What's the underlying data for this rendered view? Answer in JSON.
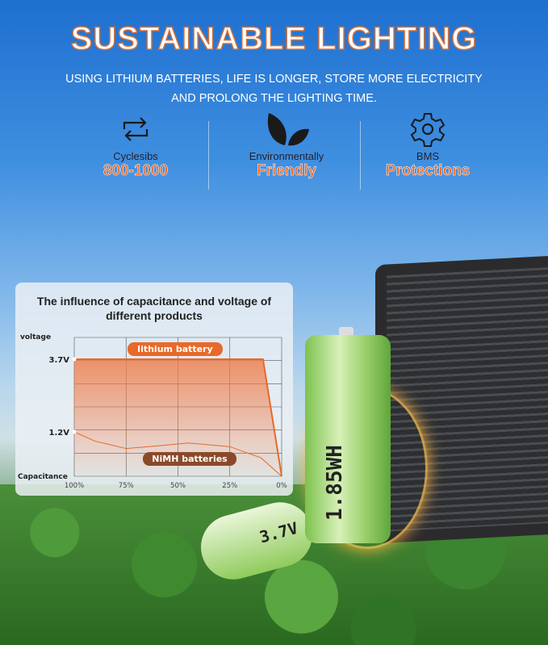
{
  "header": {
    "title": "SUSTAINABLE LIGHTING",
    "subtitle_line1": "USING LITHIUM BATTERIES, LIFE IS LONGER, STORE MORE ELECTRICITY",
    "subtitle_line2": "AND PROLONG THE LIGHTING TIME."
  },
  "features": [
    {
      "icon": "cycle-arrows-icon",
      "label": "Cyclesibs",
      "value": "800-1000"
    },
    {
      "icon": "leaf-icon",
      "label": "Environmentally",
      "value": "Friendly"
    },
    {
      "icon": "gear-icon",
      "label": "BMS",
      "value": "Protections"
    }
  ],
  "colors": {
    "accent": "#e8692a",
    "nimh": "#8a4a2a"
  },
  "chart_data": {
    "type": "line",
    "title": "The influence of capacitance and voltage of different products",
    "ylabel": "voltage",
    "xlabel": "Capacitance",
    "x_ticks": [
      "100%",
      "75%",
      "50%",
      "25%",
      "0%"
    ],
    "y_ticks": [
      "3.7V",
      "1.2V"
    ],
    "grid": true,
    "series": [
      {
        "name": "lithium battery",
        "x": [
          100,
          9,
          0
        ],
        "y": [
          3.7,
          3.7,
          0
        ],
        "fill": true
      },
      {
        "name": "NiMH batteries",
        "x": [
          100,
          90,
          75,
          60,
          45,
          25,
          10,
          0
        ],
        "y": [
          1.2,
          0.95,
          0.75,
          0.82,
          0.9,
          0.8,
          0.5,
          0
        ]
      }
    ]
  },
  "products": {
    "battery_capacity": "1.85WH",
    "battery_voltage": "3.7V"
  }
}
